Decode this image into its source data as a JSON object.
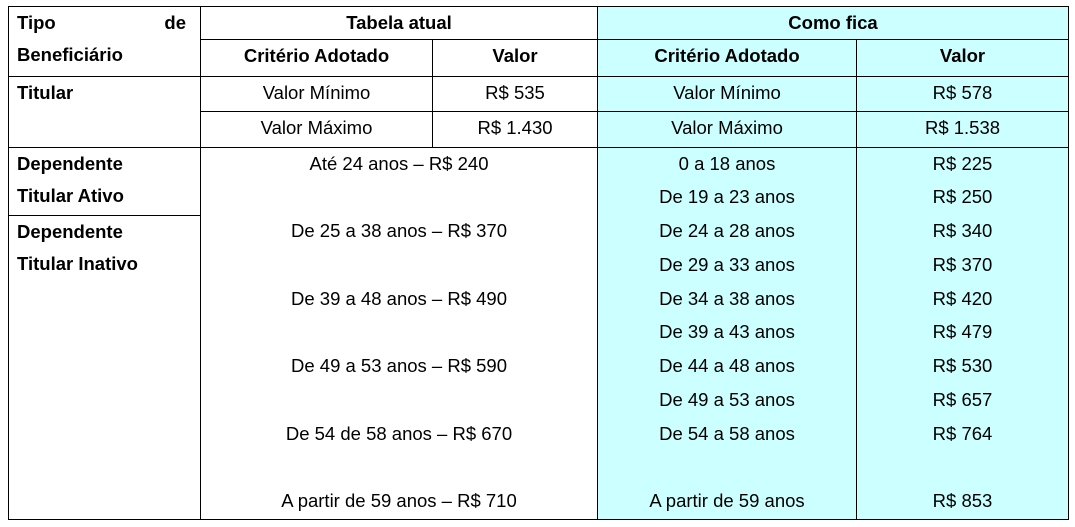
{
  "header": {
    "tipo_line1_a": "Tipo",
    "tipo_line1_b": "de",
    "tipo_line2": "Beneficiário",
    "tabela_atual": "Tabela atual",
    "como_fica": "Como fica",
    "criterio": "Critério Adotado",
    "valor": "Valor"
  },
  "titular": {
    "label": "Titular",
    "rows": [
      {
        "old_criterio": "Valor Mínimo",
        "old_valor": "R$ 535",
        "new_criterio": "Valor Mínimo",
        "new_valor": "R$ 578"
      },
      {
        "old_criterio": "Valor Máximo",
        "old_valor": "R$ 1.430",
        "new_criterio": "Valor Máximo",
        "new_valor": "R$ 1.538"
      }
    ]
  },
  "dependente": {
    "ativo_line1": "Dependente",
    "ativo_line2": "Titular Ativo",
    "inativo_line1": "Dependente",
    "inativo_line2": "Titular Inativo",
    "rows": [
      {
        "old": "Até 24 anos – R$ 240",
        "new_criterio": "0 a 18 anos",
        "new_valor": "R$ 225"
      },
      {
        "old": "",
        "new_criterio": "De 19 a 23 anos",
        "new_valor": "R$ 250"
      },
      {
        "old": "De 25 a 38 anos – R$ 370",
        "new_criterio": "De 24 a 28 anos",
        "new_valor": "R$ 340"
      },
      {
        "old": "",
        "new_criterio": "De 29 a 33 anos",
        "new_valor": "R$ 370"
      },
      {
        "old": "De 39 a 48 anos – R$ 490",
        "new_criterio": "De 34 a 38 anos",
        "new_valor": "R$ 420"
      },
      {
        "old": "",
        "new_criterio": "De 39 a 43 anos",
        "new_valor": "R$ 479"
      },
      {
        "old": "De 49 a 53 anos – R$ 590",
        "new_criterio": "De 44 a 48 anos",
        "new_valor": "R$ 530"
      },
      {
        "old": "",
        "new_criterio": "De 49 a 53 anos",
        "new_valor": "R$ 657"
      },
      {
        "old": "De 54 de 58 anos – R$ 670",
        "new_criterio": "De 54 a 58 anos",
        "new_valor": "R$ 764"
      },
      {
        "old": "",
        "new_criterio": "",
        "new_valor": ""
      },
      {
        "old": "A partir de 59 anos – R$ 710",
        "new_criterio": "A partir de 59 anos",
        "new_valor": "R$ 853"
      }
    ]
  },
  "colors": {
    "highlight": "#ccffff",
    "border": "#000000"
  }
}
